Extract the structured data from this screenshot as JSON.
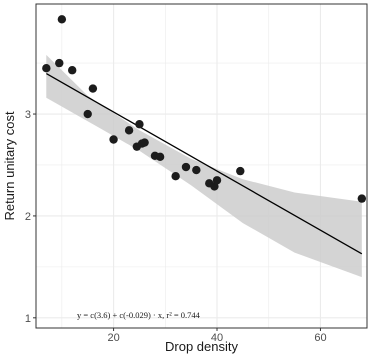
{
  "chart_data": {
    "type": "scatter",
    "xlabel": "Drop density",
    "ylabel": "Return unitary cost",
    "xlim": [
      5,
      69
    ],
    "ylim": [
      0.9,
      4.08
    ],
    "xticks": [
      20,
      40,
      60
    ],
    "yticks": [
      1,
      2,
      3
    ],
    "grid": true,
    "points": [
      {
        "x": 7,
        "y": 3.45
      },
      {
        "x": 9.5,
        "y": 3.5
      },
      {
        "x": 10,
        "y": 3.93
      },
      {
        "x": 12,
        "y": 3.43
      },
      {
        "x": 15,
        "y": 3.0
      },
      {
        "x": 16,
        "y": 3.25
      },
      {
        "x": 20,
        "y": 2.75
      },
      {
        "x": 23,
        "y": 2.84
      },
      {
        "x": 24.5,
        "y": 2.68
      },
      {
        "x": 25,
        "y": 2.9
      },
      {
        "x": 25.5,
        "y": 2.71
      },
      {
        "x": 26,
        "y": 2.72
      },
      {
        "x": 28,
        "y": 2.59
      },
      {
        "x": 29,
        "y": 2.58
      },
      {
        "x": 32,
        "y": 2.39
      },
      {
        "x": 34,
        "y": 2.48
      },
      {
        "x": 36,
        "y": 2.45
      },
      {
        "x": 38.5,
        "y": 2.32
      },
      {
        "x": 39.5,
        "y": 2.29
      },
      {
        "x": 40,
        "y": 2.35
      },
      {
        "x": 44.5,
        "y": 2.44
      },
      {
        "x": 68,
        "y": 2.17
      }
    ],
    "fit": {
      "intercept": 3.6,
      "slope": -0.029,
      "x_range": [
        7,
        68
      ],
      "ci_upper": [
        3.58,
        3.18,
        2.84,
        2.56,
        2.36,
        2.23,
        2.14
      ],
      "ci_lower": [
        3.16,
        2.93,
        2.64,
        2.3,
        1.93,
        1.64,
        1.4
      ],
      "ci_x": [
        7,
        15,
        25,
        35,
        45,
        55,
        68
      ]
    },
    "annotation": "y = c(3.6) + c(-0.029) · x,  r² = 0.744",
    "colors": {
      "point": "#1c1c1c",
      "line": "#000000",
      "ribbon": "#cccccc",
      "grid": "#ebebeb",
      "panel_border": "#333333"
    }
  }
}
